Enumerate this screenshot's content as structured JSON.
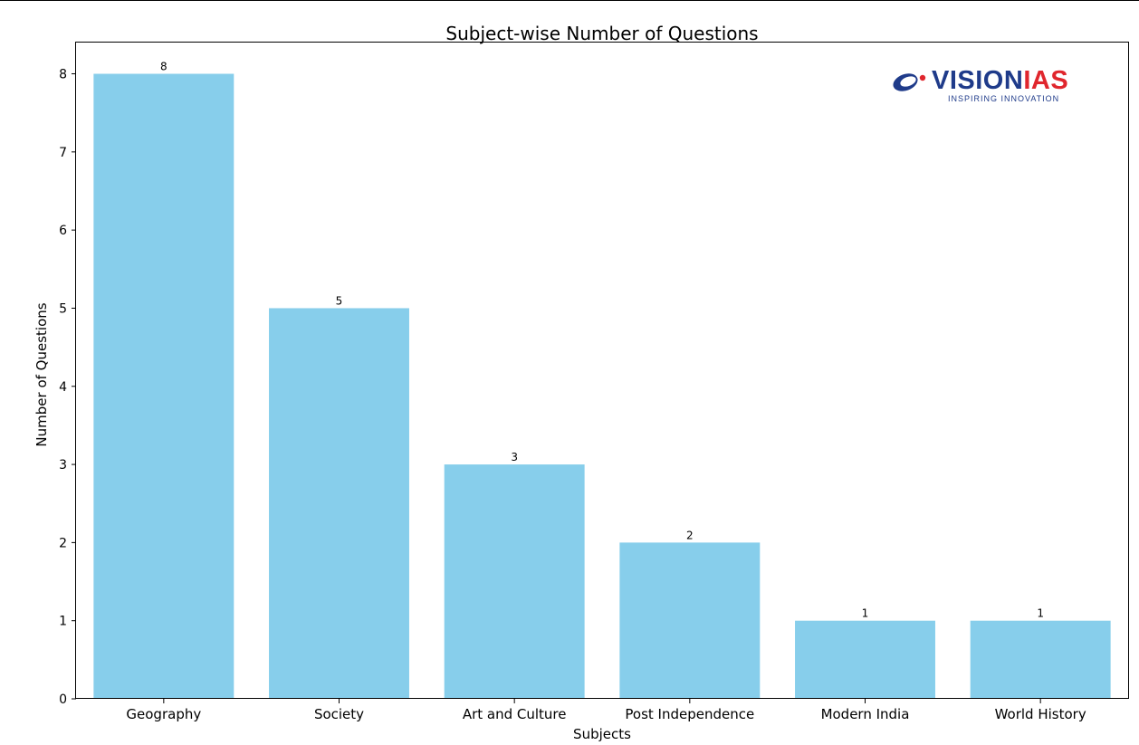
{
  "chart_data": {
    "type": "bar",
    "title": "Subject-wise Number of Questions",
    "xlabel": "Subjects",
    "ylabel": "Number of Questions",
    "categories": [
      "Geography",
      "Society",
      "Art and Culture",
      "Post Independence",
      "Modern India",
      "World History"
    ],
    "values": [
      8,
      5,
      3,
      2,
      1,
      1
    ],
    "data_labels": [
      "8",
      "5",
      "3",
      "2",
      "1",
      "1"
    ],
    "yticks": [
      0,
      1,
      2,
      3,
      4,
      5,
      6,
      7,
      8
    ],
    "ylim": [
      0,
      8.4
    ],
    "grid": false,
    "legend": "none",
    "bar_color": "#87ceeb"
  },
  "logo": {
    "word_part1": "VISION",
    "word_part2": "IAS",
    "tagline": "INSPIRING INNOVATION",
    "colors": {
      "primary": "#1f3b8a",
      "accent": "#e0262d"
    }
  }
}
